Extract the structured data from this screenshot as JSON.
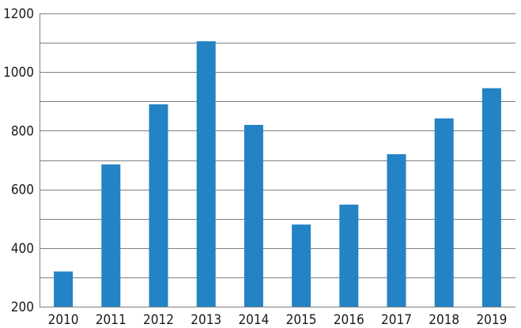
{
  "chart_data": {
    "type": "bar",
    "title": "",
    "xlabel": "",
    "ylabel": "",
    "categories": [
      "2010",
      "2011",
      "2012",
      "2013",
      "2014",
      "2015",
      "2016",
      "2017",
      "2018",
      "2019"
    ],
    "values": [
      320,
      685,
      890,
      1105,
      820,
      480,
      548,
      720,
      842,
      945
    ],
    "ylim": [
      200,
      1200
    ],
    "yticks": [
      200,
      400,
      600,
      800,
      1000,
      1200
    ],
    "ytick_labels": [
      "200",
      "400",
      "600",
      "800",
      "1000",
      "1200"
    ],
    "minor_gridlines_step": 100,
    "grid": true,
    "legend": "none",
    "bar_color": "#2383c4",
    "grid_color": "#7f7f7f"
  }
}
